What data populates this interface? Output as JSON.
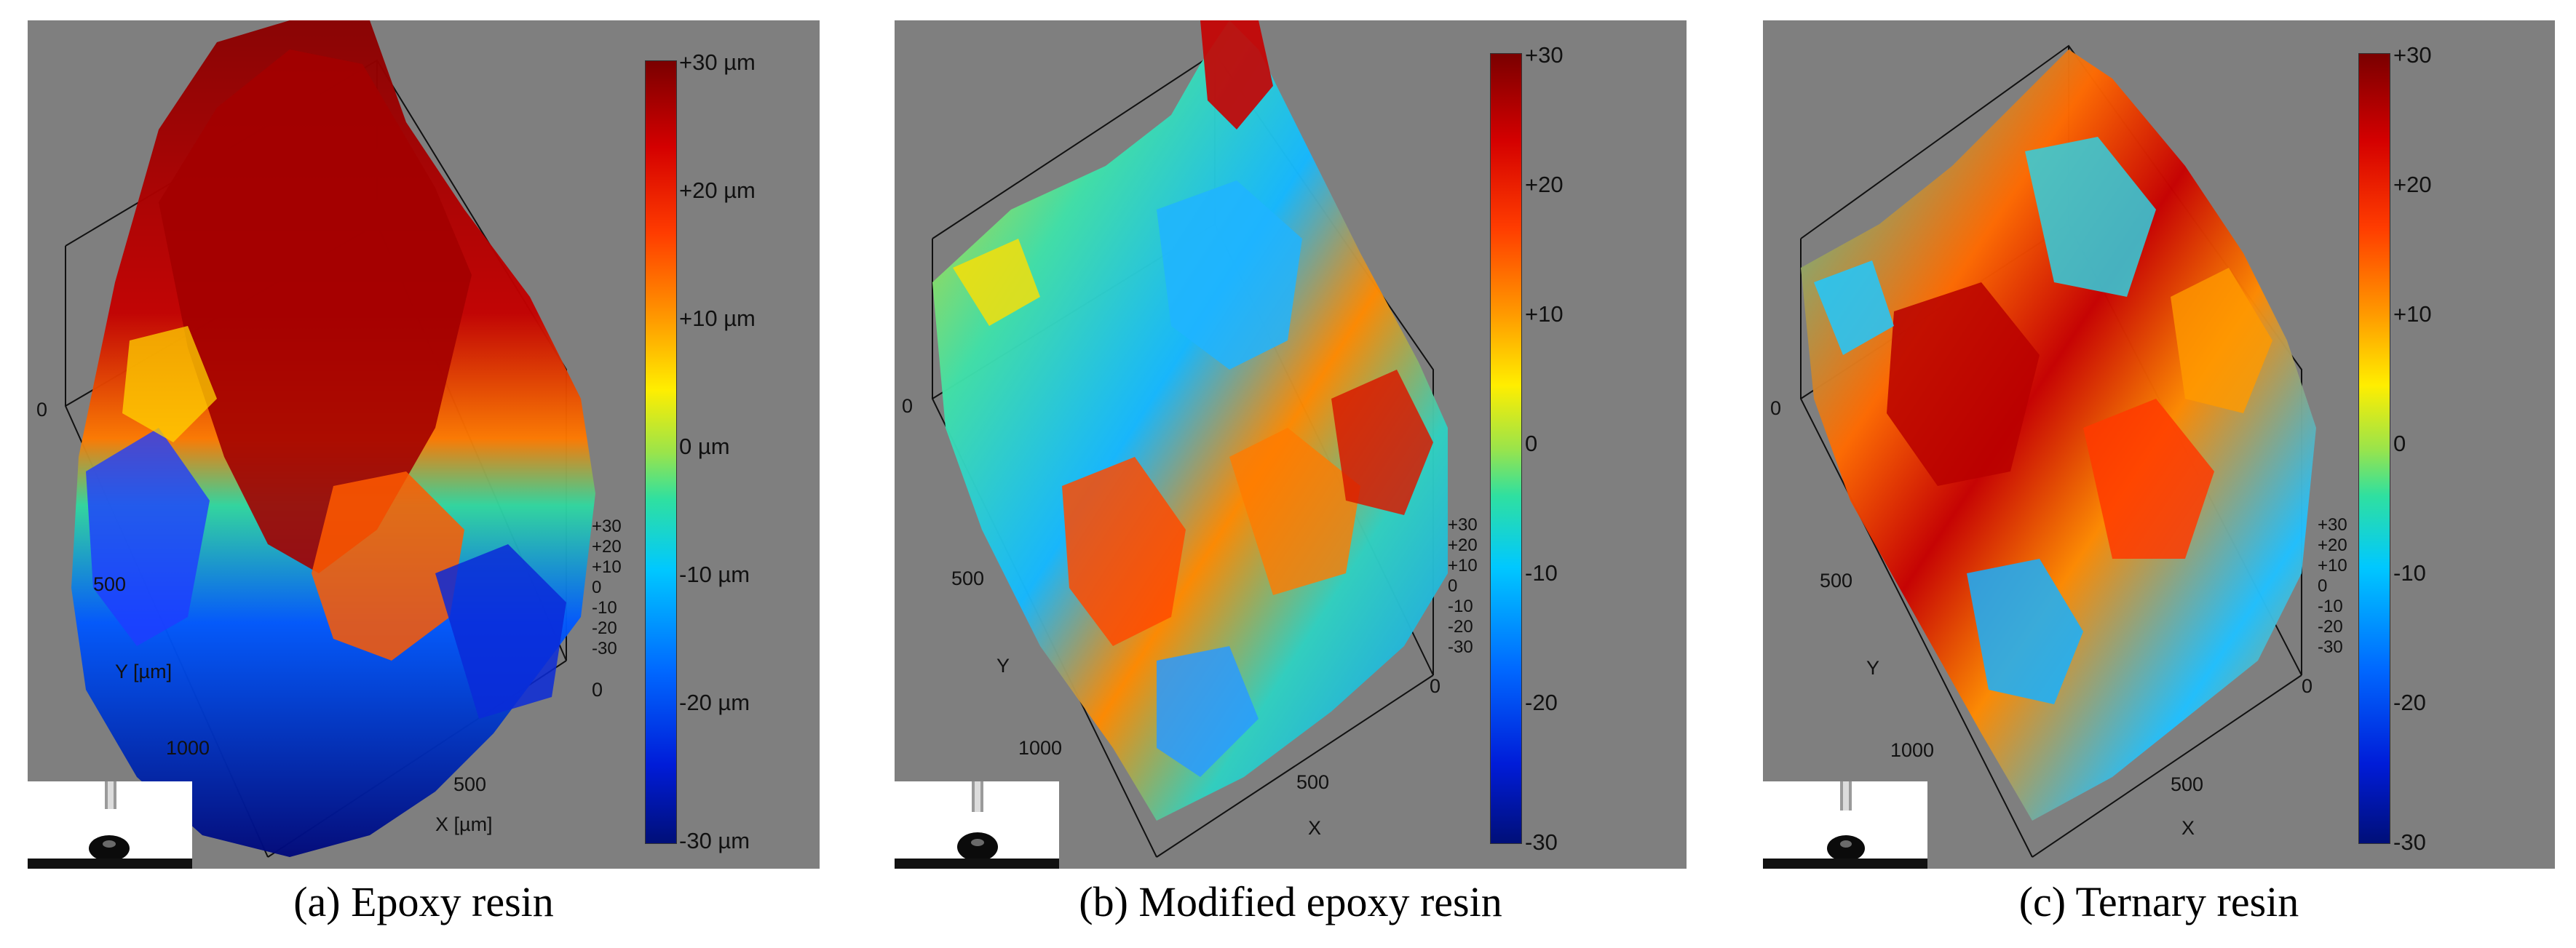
{
  "panels": [
    {
      "id": "a",
      "caption": "(a) Epoxy resin",
      "colorbar_labels": [
        "+30 µm",
        "+20 µm",
        "+10 µm",
        "0 µm",
        "-10 µm",
        "-20 µm",
        "-30 µm"
      ],
      "z_ticks": [
        "+30",
        "+20",
        "+10",
        "0",
        "-10",
        "-20",
        "-30"
      ],
      "y_ticks": [
        "0",
        "500",
        "1000"
      ],
      "x_ticks": [
        "0",
        "500"
      ],
      "y_label": "Y [µm]",
      "x_label": "X [µm]",
      "dominant_color": "#b00000"
    },
    {
      "id": "b",
      "caption": "(b) Modified epoxy resin",
      "colorbar_labels": [
        "+30",
        "+20",
        "+10",
        "0",
        "-10",
        "-20",
        "-30"
      ],
      "z_ticks": [
        "+30",
        "+20",
        "+10",
        "0",
        "-10",
        "-20",
        "-30"
      ],
      "y_ticks": [
        "0",
        "500",
        "1000"
      ],
      "x_ticks": [
        "0",
        "500"
      ],
      "y_label": "Y",
      "x_label": "X",
      "dominant_color": "#3fd0b0"
    },
    {
      "id": "c",
      "caption": "(c) Ternary resin",
      "colorbar_labels": [
        "+30",
        "+20",
        "+10",
        "0",
        "-10",
        "-20",
        "-30"
      ],
      "z_ticks": [
        "+30",
        "+20",
        "+10",
        "0",
        "-10",
        "-20",
        "-30"
      ],
      "y_ticks": [
        "0",
        "500",
        "1000"
      ],
      "x_ticks": [
        "0",
        "500"
      ],
      "y_label": "Y",
      "x_label": "X",
      "dominant_color": "#ff5a00"
    }
  ]
}
